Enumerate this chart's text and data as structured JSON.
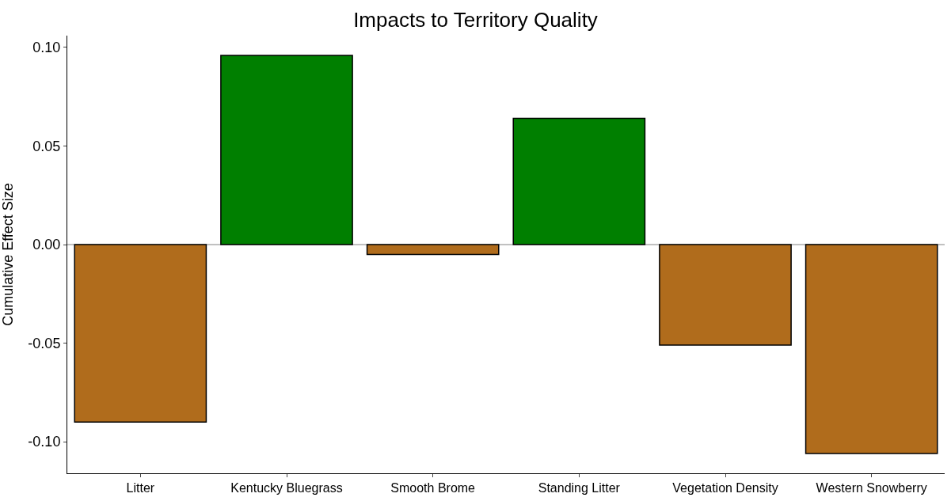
{
  "chart_data": {
    "type": "bar",
    "title": "Impacts to Territory Quality",
    "ylabel": "Cumulative Effect Size",
    "categories": [
      "Litter",
      "Kentucky Bluegrass",
      "Smooth Brome",
      "Standing Litter",
      "Vegetation Density",
      "Western Snowberry"
    ],
    "values": [
      -0.09,
      0.096,
      -0.005,
      0.064,
      -0.051,
      -0.106
    ],
    "colors": [
      "#b06c1c",
      "#007f00",
      "#b06c1c",
      "#007f00",
      "#b06c1c",
      "#b06c1c"
    ],
    "ylim": [
      -0.116,
      0.106
    ],
    "yticks": [
      {
        "value": -0.1,
        "label": "-0.10"
      },
      {
        "value": -0.05,
        "label": "-0.05"
      },
      {
        "value": 0,
        "label": "0.00"
      },
      {
        "value": 0.05,
        "label": "0.05"
      },
      {
        "value": 0.1,
        "label": "0.10"
      }
    ],
    "ref_lines": [
      {
        "axis": "y",
        "value": 0,
        "color": "#808080"
      }
    ],
    "grid": false
  }
}
